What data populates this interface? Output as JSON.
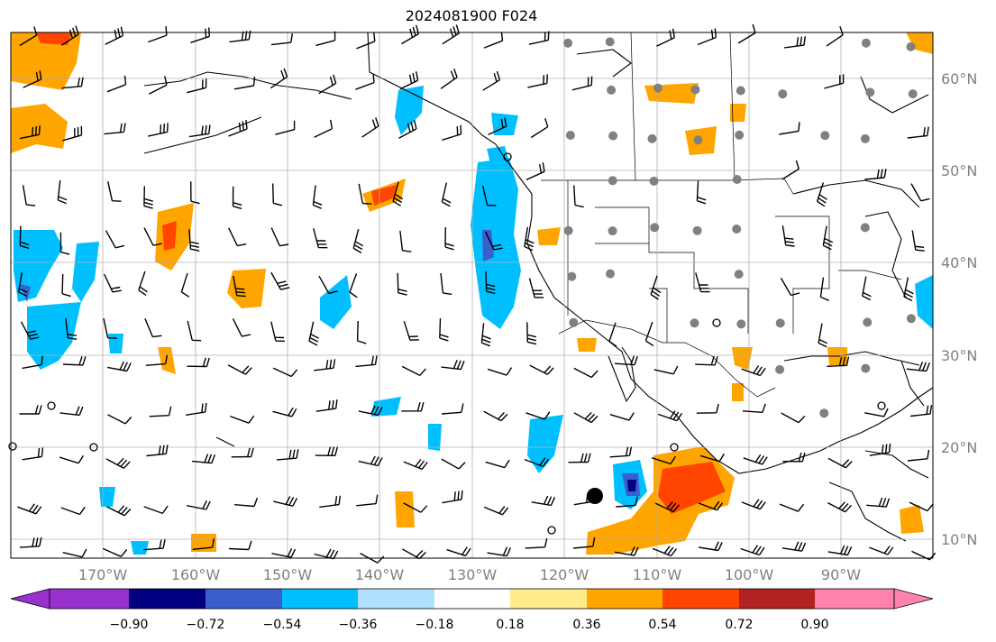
{
  "title": "2024081900 F024",
  "map": {
    "lon_labels": [
      "170°W",
      "160°W",
      "150°W",
      "140°W",
      "130°W",
      "120°W",
      "110°W",
      "100°W",
      "90°W"
    ],
    "lat_labels": [
      "60°N",
      "50°N",
      "40°N",
      "30°N",
      "20°N",
      "10°N"
    ],
    "label_color": "#808080",
    "grid_color": "#b0b0b0"
  },
  "colorbar": {
    "tick_labels": [
      "−0.90",
      "−0.72",
      "−0.54",
      "−0.36",
      "−0.18",
      "0.18",
      "0.36",
      "0.54",
      "0.72",
      "0.90"
    ],
    "colors": [
      "#9932cc",
      "#000080",
      "#3a5fcd",
      "#00bfff",
      "#b0e2ff",
      "#ffffff",
      "#ffec8b",
      "#ffa500",
      "#ff4500",
      "#b22222",
      "#ff82ab"
    ]
  },
  "legend_symbols": {
    "station_dot_color": "#808080"
  }
}
